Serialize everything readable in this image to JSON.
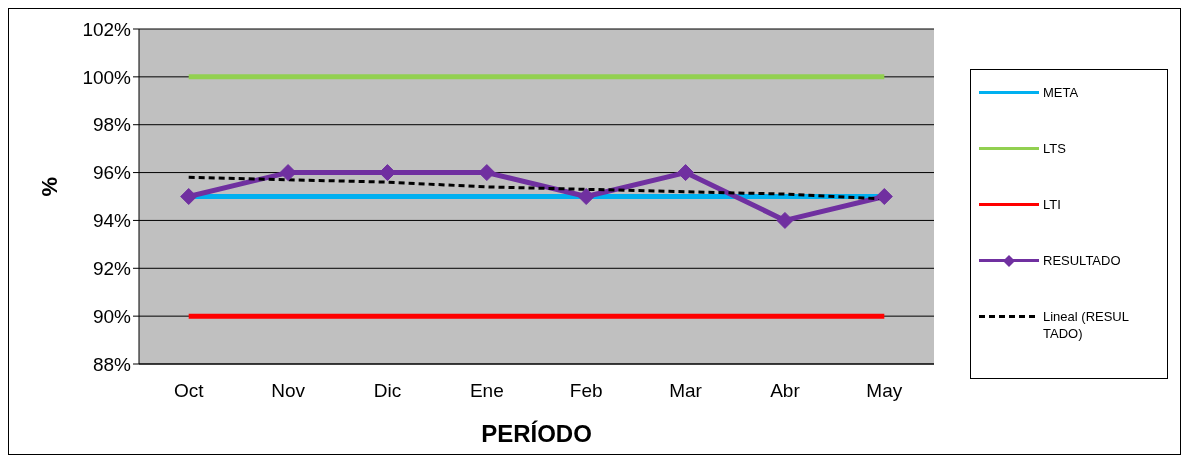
{
  "chart_data": {
    "type": "line",
    "xlabel": "PERÍODO",
    "ylabel": "%",
    "categories": [
      "Oct",
      "Nov",
      "Dic",
      "Ene",
      "Feb",
      "Mar",
      "Abr",
      "May"
    ],
    "series": [
      {
        "name": "META",
        "color": "#00b0f0",
        "values": [
          95,
          95,
          95,
          95,
          95,
          95,
          95,
          95
        ],
        "marker": "none"
      },
      {
        "name": "LTS",
        "color": "#92d050",
        "values": [
          100,
          100,
          100,
          100,
          100,
          100,
          100,
          100
        ],
        "marker": "none"
      },
      {
        "name": "LTI",
        "color": "#ff0000",
        "values": [
          90,
          90,
          90,
          90,
          90,
          90,
          90,
          90
        ],
        "marker": "none"
      },
      {
        "name": "RESULTADO",
        "color": "#7030a0",
        "values": [
          95,
          96,
          96,
          96,
          95,
          96,
          94,
          95
        ],
        "marker": "diamond"
      },
      {
        "name": "Lineal (RESULTADO)",
        "color": "#000000",
        "values": [
          95.8,
          95.7,
          95.6,
          95.4,
          95.3,
          95.2,
          95.1,
          94.9
        ],
        "marker": "none",
        "line_style": "dashed"
      }
    ],
    "ylim": [
      88,
      102
    ],
    "yticks": [
      {
        "value": 88,
        "label": "88%"
      },
      {
        "value": 90,
        "label": "90%"
      },
      {
        "value": 92,
        "label": "92%"
      },
      {
        "value": 94,
        "label": "94%"
      },
      {
        "value": 96,
        "label": "96%"
      },
      {
        "value": 98,
        "label": "98%"
      },
      {
        "value": 100,
        "label": "100%"
      },
      {
        "value": 102,
        "label": "102%"
      }
    ],
    "grid": "y",
    "legend": "right"
  }
}
